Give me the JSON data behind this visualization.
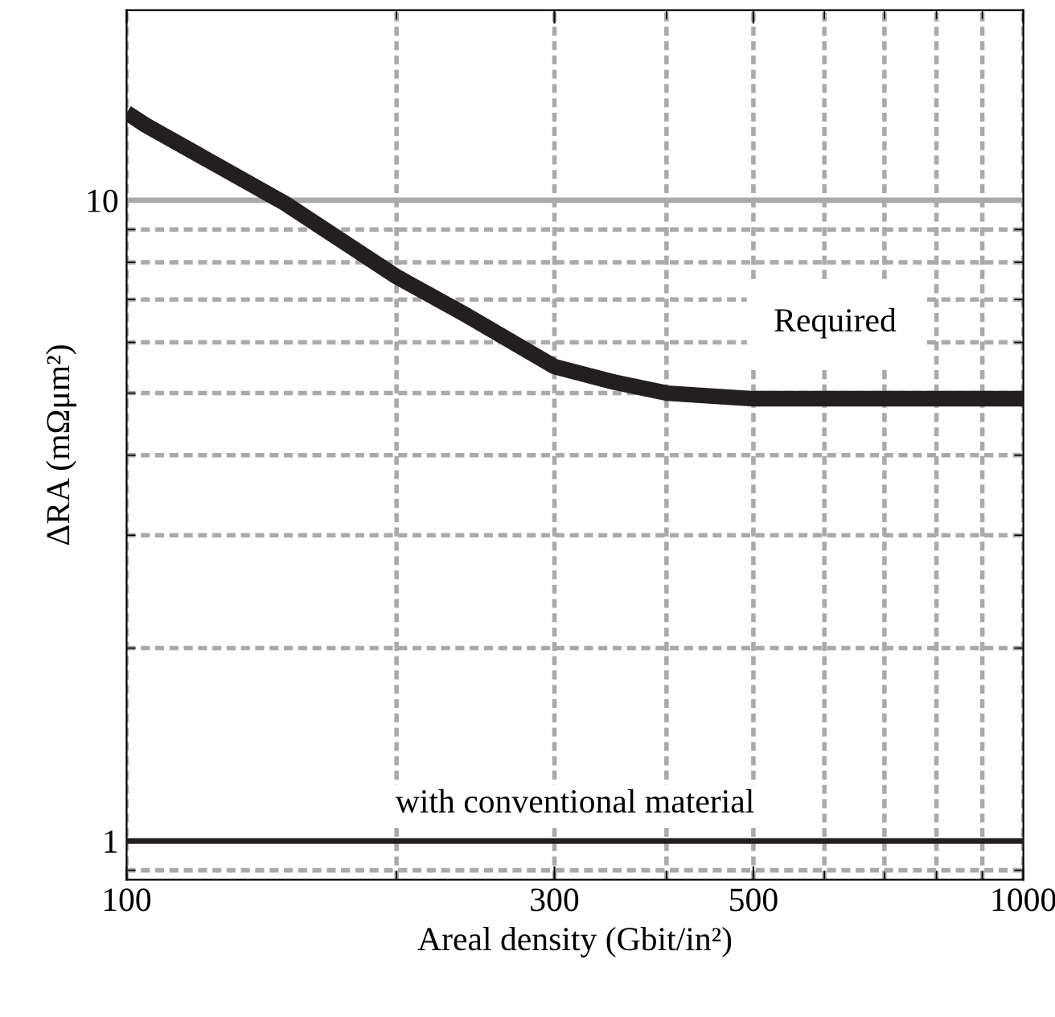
{
  "chart_data": {
    "type": "line",
    "xlabel": "Areal density (Gbit/in²)",
    "ylabel": "ΔRA (mΩμm²)",
    "log": "xy",
    "xlim": [
      100,
      1000
    ],
    "ylim": [
      0.87,
      19.8
    ],
    "xticks": [
      100,
      300,
      500,
      1000
    ],
    "yticks": [
      1,
      10
    ],
    "grid": true,
    "series": [
      {
        "color": "#231f20",
        "x": [
          100,
          105,
          150,
          200,
          240,
          300,
          350,
          400,
          500,
          1000
        ],
        "values": [
          13.7,
          13.1,
          9.9,
          7.6,
          6.6,
          5.5,
          5.2,
          5.0,
          4.9,
          4.9
        ]
      }
    ],
    "ref_lines": [
      {
        "axis": "y",
        "value": 1,
        "label": "with conventional material",
        "color": "#231f20",
        "line_style": "solid"
      },
      {
        "axis": "y",
        "value": 10,
        "color": "#aaaaaa",
        "line_style": "solid"
      }
    ],
    "annotations": [
      "Required"
    ],
    "marker": "none",
    "line_style": "solid"
  }
}
